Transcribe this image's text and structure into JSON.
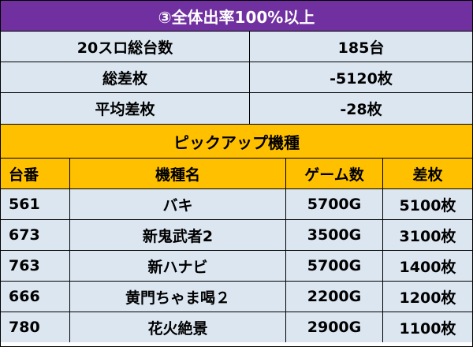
{
  "banner": {
    "title": "③全体出率100%以上"
  },
  "summary": [
    {
      "label": "20スロ総台数",
      "value": "185台"
    },
    {
      "label": "総差枚",
      "value": "-5120枚"
    },
    {
      "label": "平均差枚",
      "value": "-28枚"
    }
  ],
  "pickup": {
    "title": "ピックアップ機種"
  },
  "table": {
    "headers": [
      "台番",
      "機種名",
      "ゲーム数",
      "差枚"
    ],
    "rows": [
      [
        "561",
        "バキ",
        "5700G",
        "5100枚"
      ],
      [
        "673",
        "新鬼武者2",
        "3500G",
        "3100枚"
      ],
      [
        "763",
        "新ハナビ",
        "5700G",
        "1400枚"
      ],
      [
        "666",
        "黄門ちゃま喝２",
        "2200G",
        "1200枚"
      ],
      [
        "780",
        "花火絶景",
        "2900G",
        "1100枚"
      ]
    ]
  },
  "colors": {
    "banner": "#7030a0",
    "summary_bg": "#dce6f1",
    "header_bg": "#ffc000"
  }
}
